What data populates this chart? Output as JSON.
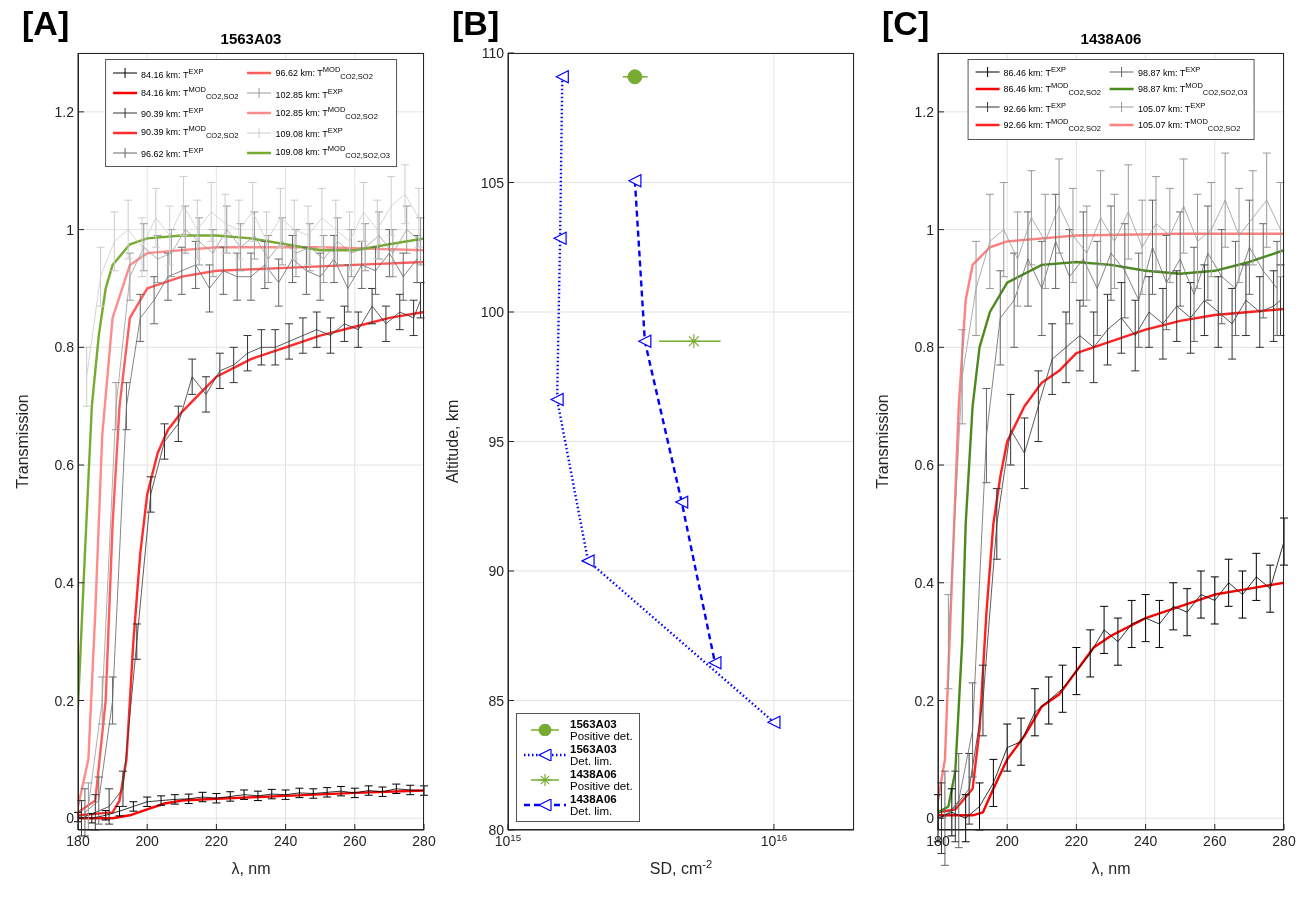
{
  "chart_data": [
    {
      "type": "line",
      "title": "1563A03",
      "annotations": [
        "[A]"
      ],
      "xlabel": "λ, nm",
      "ylabel": "Transmission",
      "xlim": [
        180,
        280
      ],
      "xticks": [
        180,
        200,
        220,
        240,
        260,
        280
      ],
      "ylim": [
        -0.02,
        1.3
      ],
      "yticks": [
        0,
        0.2,
        0.4,
        0.6,
        0.8,
        1,
        1.2
      ],
      "grid": true,
      "legend": "top",
      "marker": "none",
      "line_style": "solid",
      "x": [
        180,
        184,
        188,
        192,
        196,
        200,
        204,
        208,
        212,
        216,
        220,
        224,
        228,
        232,
        236,
        240,
        244,
        248,
        252,
        256,
        260,
        264,
        268,
        272,
        276,
        280
      ],
      "series": [
        {
          "name": "84.16 km: T$^{EXP}$",
          "color": "#000000",
          "values": [
            0.002,
            0.0,
            0.005,
            0.012,
            0.02,
            0.028,
            0.03,
            0.032,
            0.033,
            0.036,
            0.034,
            0.037,
            0.04,
            0.038,
            0.041,
            0.04,
            0.043,
            0.042,
            0.044,
            0.046,
            0.043,
            0.047,
            0.045,
            0.05,
            0.048,
            0.047
          ],
          "errors": [
            0.008,
            0.008,
            0.008,
            0.008,
            0.008,
            0.008,
            0.008,
            0.008,
            0.008,
            0.008,
            0.008,
            0.008,
            0.008,
            0.008,
            0.008,
            0.008,
            0.008,
            0.008,
            0.008,
            0.008,
            0.008,
            0.008,
            0.008,
            0.008,
            0.008,
            0.008
          ]
        },
        {
          "name": "84.16 km: T$^{MOD}$$_{CO2,SO2}$",
          "color": "#ff0000",
          "x": [
            180,
            190,
            195,
            200,
            205,
            210,
            220,
            240,
            260,
            280
          ],
          "values": [
            0,
            0,
            0.005,
            0.015,
            0.025,
            0.03,
            0.033,
            0.038,
            0.043,
            0.047
          ]
        },
        {
          "name": "90.39 km: T$^{EXP}$",
          "color": "#333333",
          "x": [
            181,
            185,
            189,
            193,
            197,
            201,
            205,
            209,
            213,
            217,
            221,
            225,
            229,
            233,
            237,
            241,
            245,
            249,
            253,
            257,
            261,
            265,
            269,
            273,
            277,
            279
          ],
          "values": [
            0.0,
            0.01,
            0.02,
            0.05,
            0.3,
            0.55,
            0.64,
            0.67,
            0.75,
            0.72,
            0.76,
            0.77,
            0.79,
            0.8,
            0.8,
            0.81,
            0.82,
            0.83,
            0.82,
            0.84,
            0.83,
            0.87,
            0.84,
            0.86,
            0.85,
            0.88
          ],
          "errors": [
            0.03,
            0.03,
            0.03,
            0.03,
            0.03,
            0.03,
            0.03,
            0.03,
            0.03,
            0.03,
            0.03,
            0.03,
            0.03,
            0.03,
            0.03,
            0.03,
            0.03,
            0.03,
            0.03,
            0.03,
            0.03,
            0.03,
            0.03,
            0.03,
            0.03,
            0.03
          ]
        },
        {
          "name": "90.39 km: T$^{MOD}$$_{CO2,SO2}$",
          "color": "#ff2a2a",
          "x": [
            180,
            190,
            192,
            194,
            196,
            198,
            200,
            203,
            206,
            210,
            215,
            220,
            230,
            240,
            250,
            260,
            270,
            280
          ],
          "values": [
            0.005,
            0.01,
            0.03,
            0.1,
            0.3,
            0.45,
            0.55,
            0.62,
            0.66,
            0.69,
            0.72,
            0.75,
            0.78,
            0.8,
            0.82,
            0.835,
            0.85,
            0.86
          ]
        },
        {
          "name": "96.62 km: T$^{EXP}$",
          "color": "#666666",
          "x": [
            182,
            186,
            190,
            194,
            198,
            202,
            206,
            210,
            214,
            218,
            222,
            226,
            230,
            234,
            238,
            242,
            246,
            250,
            254,
            258,
            262,
            266,
            270,
            274,
            278
          ],
          "values": [
            0.01,
            0.03,
            0.2,
            0.7,
            0.85,
            0.88,
            0.92,
            0.93,
            0.94,
            0.9,
            0.93,
            0.92,
            0.92,
            0.94,
            0.91,
            0.95,
            0.93,
            0.92,
            0.95,
            0.9,
            0.94,
            0.93,
            0.96,
            0.92,
            0.95
          ],
          "errors": [
            0.04,
            0.04,
            0.04,
            0.04,
            0.04,
            0.04,
            0.04,
            0.04,
            0.04,
            0.04,
            0.04,
            0.04,
            0.04,
            0.04,
            0.04,
            0.04,
            0.04,
            0.04,
            0.04,
            0.04,
            0.04,
            0.04,
            0.04,
            0.04,
            0.04
          ]
        },
        {
          "name": "96.62 km: T$^{MOD}$$_{CO2,SO2}$",
          "color": "#ff5c5c",
          "x": [
            180,
            185,
            188,
            190,
            192,
            195,
            200,
            210,
            220,
            240,
            260,
            280
          ],
          "values": [
            0.01,
            0.03,
            0.2,
            0.5,
            0.7,
            0.85,
            0.9,
            0.92,
            0.93,
            0.935,
            0.94,
            0.945
          ]
        },
        {
          "name": "102.85 km: T$^{EXP}$",
          "color": "#999999",
          "x": [
            183,
            187,
            191,
            195,
            199,
            203,
            207,
            211,
            215,
            219,
            223,
            227,
            231,
            235,
            239,
            243,
            247,
            251,
            255,
            259,
            263,
            267,
            271,
            275,
            279
          ],
          "values": [
            0.02,
            0.2,
            0.7,
            0.92,
            0.97,
            0.95,
            0.96,
            1.0,
            0.98,
            0.96,
            1.0,
            0.97,
            0.99,
            0.95,
            0.98,
            0.96,
            0.97,
            0.95,
            0.98,
            0.96,
            0.97,
            0.99,
            0.96,
            1.0,
            0.98
          ],
          "errors": [
            0.04,
            0.04,
            0.04,
            0.04,
            0.04,
            0.04,
            0.04,
            0.04,
            0.04,
            0.04,
            0.04,
            0.04,
            0.04,
            0.04,
            0.04,
            0.04,
            0.04,
            0.04,
            0.04,
            0.04,
            0.04,
            0.04,
            0.04,
            0.04,
            0.04
          ]
        },
        {
          "name": "102.85 km: T$^{MOD}$$_{CO2,SO2}$",
          "color": "#ff8c8c",
          "x": [
            180,
            183,
            185,
            187,
            190,
            195,
            200,
            220,
            250,
            280
          ],
          "values": [
            0.02,
            0.1,
            0.35,
            0.65,
            0.85,
            0.94,
            0.96,
            0.97,
            0.97,
            0.965
          ]
        },
        {
          "name": "109.08 km: T$^{EXP}$",
          "color": "#cccccc",
          "x": [
            182.5,
            186.5,
            190.5,
            194.5,
            198.5,
            202.5,
            206.5,
            210.5,
            214.5,
            218.5,
            222.5,
            226.5,
            230.5,
            234.5,
            238.5,
            242.5,
            246.5,
            250.5,
            254.5,
            258.5,
            262.5,
            266.5,
            270.5,
            274.5,
            278.5
          ],
          "values": [
            0.75,
            0.92,
            0.98,
            1.0,
            0.97,
            1.02,
            0.99,
            1.04,
            1.0,
            1.03,
            1.01,
            1.0,
            1.03,
            0.98,
            1.02,
            1.0,
            0.99,
            1.02,
            1.0,
            0.98,
            1.03,
            1.0,
            1.04,
            1.06,
            1.02
          ],
          "errors": [
            0.05,
            0.05,
            0.05,
            0.05,
            0.05,
            0.05,
            0.05,
            0.05,
            0.05,
            0.05,
            0.05,
            0.05,
            0.05,
            0.05,
            0.05,
            0.05,
            0.05,
            0.05,
            0.05,
            0.05,
            0.05,
            0.05,
            0.05,
            0.05,
            0.05
          ]
        },
        {
          "name": "109.08 km: T$^{MOD}$$_{CO2,SO2,O3}$",
          "color": "#77ac30",
          "x": [
            180,
            182,
            184,
            186,
            188,
            190,
            195,
            200,
            210,
            220,
            230,
            240,
            250,
            260,
            270,
            280
          ],
          "values": [
            0.19,
            0.45,
            0.7,
            0.82,
            0.9,
            0.94,
            0.975,
            0.985,
            0.99,
            0.99,
            0.985,
            0.975,
            0.965,
            0.965,
            0.975,
            0.985
          ]
        }
      ]
    },
    {
      "type": "line",
      "annotations": [
        "[B]"
      ],
      "xlabel": "SD, cm$^{-2}$",
      "ylabel": "Altitude, km",
      "log": "x",
      "xlim": [
        1000000000000000.0,
        2e+16
      ],
      "xticks": [
        {
          "value": 1000000000000000.0,
          "label": "10$^{15}$"
        },
        {
          "value": 1e+16,
          "label": "10$^{16}$"
        }
      ],
      "ylim": [
        80,
        110
      ],
      "yticks": [
        80,
        85,
        90,
        95,
        100,
        105,
        110
      ],
      "grid": true,
      "legend": "bottom left",
      "series": [
        {
          "name": "1563A03\nPositive det.",
          "type": "scatter",
          "marker": "circle",
          "color": "#77ac30",
          "x": [
            3000000000000000.0
          ],
          "values": [
            109.08
          ],
          "xerrors": [
            [
              2700000000000000.0,
              3350000000000000.0
            ]
          ]
        },
        {
          "name": "1563A03\nDet. lim.",
          "marker": "triangle",
          "line_style": "dotted",
          "color": "#0000ff",
          "x": [
            1600000000000000.0,
            1570000000000000.0,
            1530000000000000.0,
            2000000000000000.0,
            1e+16
          ],
          "values": [
            109.08,
            102.85,
            96.62,
            90.39,
            84.16
          ]
        },
        {
          "name": "1438A06\nPositive det.",
          "type": "scatter",
          "marker": "cross",
          "color": "#77ac30",
          "x": [
            5000000000000000.0
          ],
          "values": [
            98.87
          ],
          "xerrors": [
            [
              3700000000000000.0,
              6300000000000000.0
            ]
          ]
        },
        {
          "name": "1438A06\nDet. lim.",
          "marker": "triangle",
          "line_style": "dashed",
          "color": "#0000ff",
          "x": [
            3000000000000000.0,
            3270000000000000.0,
            4500000000000000.0,
            6000000000000000.0
          ],
          "values": [
            105.07,
            98.87,
            92.66,
            86.46
          ]
        }
      ]
    },
    {
      "type": "line",
      "title": "1438A06",
      "annotations": [
        "[C]"
      ],
      "xlabel": "λ, nm",
      "ylabel": "Transmission",
      "xlim": [
        180,
        280
      ],
      "xticks": [
        180,
        200,
        220,
        240,
        260,
        280
      ],
      "ylim": [
        -0.02,
        1.3
      ],
      "yticks": [
        0,
        0.2,
        0.4,
        0.6,
        0.8,
        1,
        1.2
      ],
      "grid": true,
      "legend": "top",
      "marker": "none",
      "line_style": "solid",
      "x": [
        180,
        184,
        188,
        192,
        196,
        200,
        204,
        208,
        212,
        216,
        220,
        224,
        228,
        232,
        236,
        240,
        244,
        248,
        252,
        256,
        260,
        264,
        268,
        272,
        276,
        280
      ],
      "series": [
        {
          "name": "86.46 km: T$^{EXP}$",
          "color": "#000000",
          "values": [
            0.0,
            0.01,
            0.0,
            0.02,
            0.06,
            0.12,
            0.13,
            0.18,
            0.2,
            0.22,
            0.25,
            0.28,
            0.32,
            0.3,
            0.33,
            0.34,
            0.33,
            0.36,
            0.35,
            0.38,
            0.37,
            0.4,
            0.38,
            0.41,
            0.39,
            0.47
          ],
          "errors": [
            0.04,
            0.04,
            0.04,
            0.04,
            0.04,
            0.04,
            0.04,
            0.04,
            0.04,
            0.04,
            0.04,
            0.04,
            0.04,
            0.04,
            0.04,
            0.04,
            0.04,
            0.04,
            0.04,
            0.04,
            0.04,
            0.04,
            0.04,
            0.04,
            0.04,
            0.04
          ]
        },
        {
          "name": "86.46 km: T$^{MOD}$$_{CO2,SO2}$",
          "color": "#ff0000",
          "x": [
            180,
            190,
            193,
            196,
            200,
            205,
            210,
            215,
            220,
            225,
            230,
            240,
            250,
            260,
            270,
            280
          ],
          "values": [
            0.005,
            0.005,
            0.01,
            0.05,
            0.1,
            0.14,
            0.19,
            0.21,
            0.25,
            0.29,
            0.31,
            0.34,
            0.36,
            0.38,
            0.39,
            0.4
          ]
        },
        {
          "name": "92.66 km: T$^{EXP}$",
          "color": "#333333",
          "x": [
            181,
            185,
            189,
            193,
            197,
            201,
            205,
            209,
            213,
            217,
            221,
            225,
            229,
            233,
            237,
            241,
            245,
            249,
            253,
            257,
            261,
            265,
            269,
            273,
            277,
            279
          ],
          "values": [
            0.0,
            0.02,
            0.05,
            0.2,
            0.5,
            0.66,
            0.62,
            0.7,
            0.78,
            0.8,
            0.82,
            0.8,
            0.83,
            0.85,
            0.82,
            0.86,
            0.84,
            0.87,
            0.85,
            0.88,
            0.86,
            0.84,
            0.88,
            0.86,
            0.87,
            0.88
          ],
          "errors": [
            0.06,
            0.06,
            0.06,
            0.06,
            0.06,
            0.06,
            0.06,
            0.06,
            0.06,
            0.06,
            0.06,
            0.06,
            0.06,
            0.06,
            0.06,
            0.06,
            0.06,
            0.06,
            0.06,
            0.06,
            0.06,
            0.06,
            0.06,
            0.06,
            0.06,
            0.06
          ]
        },
        {
          "name": "92.66 km: T$^{MOD}$$_{CO2,SO2}$",
          "color": "#ff2020",
          "x": [
            180,
            185,
            190,
            192,
            194,
            196,
            198,
            200,
            205,
            210,
            215,
            220,
            230,
            240,
            250,
            260,
            270,
            280
          ],
          "values": [
            0.01,
            0.015,
            0.05,
            0.15,
            0.35,
            0.5,
            0.58,
            0.64,
            0.7,
            0.74,
            0.76,
            0.79,
            0.81,
            0.83,
            0.845,
            0.855,
            0.86,
            0.865
          ]
        },
        {
          "name": "98.87 km: T$^{EXP}$",
          "color": "#666666",
          "x": [
            182,
            186,
            190,
            194,
            198,
            202,
            206,
            210,
            214,
            218,
            222,
            226,
            230,
            234,
            238,
            242,
            246,
            250,
            254,
            258,
            262,
            266,
            270,
            274,
            278
          ],
          "values": [
            0.0,
            0.03,
            0.15,
            0.65,
            0.85,
            0.88,
            0.95,
            0.9,
            0.98,
            0.92,
            0.95,
            0.9,
            0.96,
            0.93,
            0.88,
            0.97,
            0.91,
            0.95,
            0.89,
            0.96,
            0.92,
            0.9,
            0.97,
            0.93,
            0.9
          ],
          "errors": [
            0.08,
            0.08,
            0.08,
            0.08,
            0.08,
            0.08,
            0.08,
            0.08,
            0.08,
            0.08,
            0.08,
            0.08,
            0.08,
            0.08,
            0.08,
            0.08,
            0.08,
            0.08,
            0.08,
            0.08,
            0.08,
            0.08,
            0.08,
            0.08,
            0.08
          ]
        },
        {
          "name": "98.87 km: T$^{MOD}$$_{CO2,SO2,O3}$",
          "color": "#4d8a1e",
          "x": [
            180,
            183,
            185,
            187,
            188,
            190,
            192,
            195,
            200,
            210,
            220,
            230,
            240,
            250,
            260,
            270,
            280
          ],
          "values": [
            0.01,
            0.02,
            0.08,
            0.3,
            0.5,
            0.7,
            0.8,
            0.86,
            0.91,
            0.94,
            0.945,
            0.94,
            0.93,
            0.925,
            0.93,
            0.945,
            0.965
          ]
        },
        {
          "name": "105.07 km: T$^{EXP}$",
          "color": "#999999",
          "x": [
            183,
            187,
            191,
            195,
            199,
            203,
            207,
            211,
            215,
            219,
            223,
            227,
            231,
            235,
            239,
            243,
            247,
            251,
            255,
            259,
            263,
            267,
            271,
            275,
            279
          ],
          "values": [
            0.3,
            0.75,
            0.9,
            0.98,
            1.0,
            0.95,
            1.02,
            0.98,
            1.04,
            0.99,
            0.96,
            1.02,
            0.98,
            1.03,
            0.97,
            1.01,
            0.99,
            1.04,
            0.98,
            1.0,
            1.05,
            0.99,
            1.02,
            1.05,
            1.0
          ],
          "errors": [
            0.08,
            0.08,
            0.08,
            0.08,
            0.08,
            0.08,
            0.08,
            0.08,
            0.08,
            0.08,
            0.08,
            0.08,
            0.08,
            0.08,
            0.08,
            0.08,
            0.08,
            0.08,
            0.08,
            0.08,
            0.08,
            0.08,
            0.08,
            0.08,
            0.08
          ]
        },
        {
          "name": "105.07 km: T$^{MOD}$$_{CO2,SO2}$",
          "color": "#ff8080",
          "x": [
            180,
            182,
            184,
            186,
            188,
            190,
            195,
            200,
            220,
            250,
            280
          ],
          "values": [
            0.03,
            0.1,
            0.4,
            0.7,
            0.88,
            0.94,
            0.97,
            0.98,
            0.99,
            0.993,
            0.993
          ]
        }
      ]
    }
  ]
}
